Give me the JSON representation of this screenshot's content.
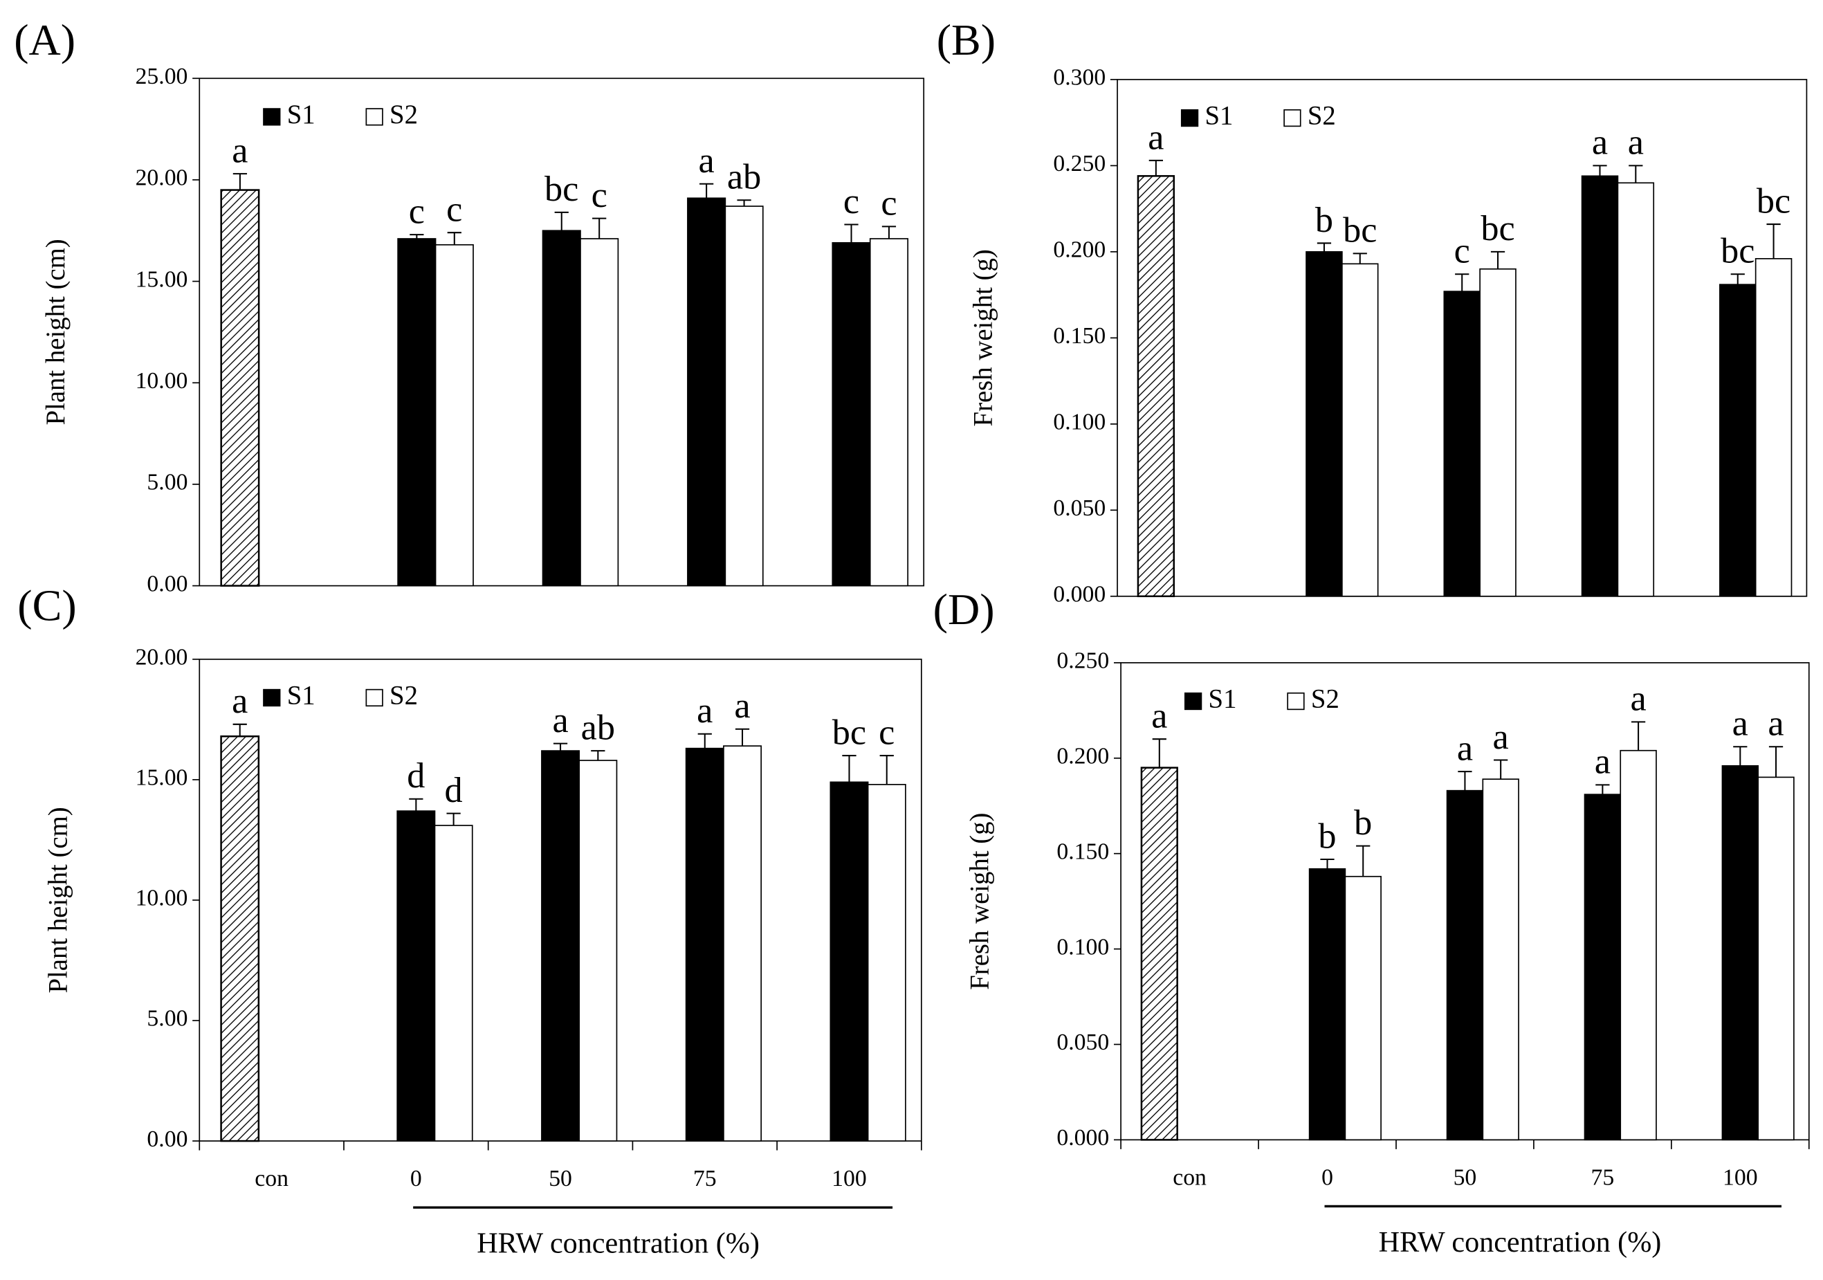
{
  "chart_data": [
    {
      "type": "bar",
      "panel": "(A)",
      "ylabel": "Plant height (cm)",
      "categories": [
        null,
        null,
        null,
        null,
        null
      ],
      "control": {
        "value": 19.5,
        "error": 0.8,
        "letter": "a"
      },
      "series": [
        {
          "name": "S1",
          "color": "#000000",
          "values": [
            null,
            17.1,
            17.5,
            19.1,
            16.9
          ],
          "errors": [
            null,
            0.2,
            0.9,
            0.7,
            0.9
          ],
          "letters": [
            null,
            "c",
            "bc",
            "a",
            "c"
          ]
        },
        {
          "name": "S2",
          "color": "#ffffff",
          "values": [
            null,
            16.8,
            17.1,
            18.7,
            17.1
          ],
          "errors": [
            null,
            0.6,
            1.0,
            0.3,
            0.6
          ],
          "letters": [
            null,
            "c",
            "c",
            "ab",
            "c"
          ]
        }
      ],
      "ylim": [
        0,
        25
      ],
      "yticks": [
        {
          "value": 0,
          "label": "0.00"
        },
        {
          "value": 5,
          "label": "5.00"
        },
        {
          "value": 10,
          "label": "10.00"
        },
        {
          "value": 15,
          "label": "15.00"
        },
        {
          "value": 20,
          "label": "20.00"
        },
        {
          "value": 25,
          "label": "25.00"
        }
      ]
    },
    {
      "type": "bar",
      "panel": "(B)",
      "ylabel": "Fresh weight (g)",
      "categories": [
        null,
        null,
        null,
        null,
        null
      ],
      "control": {
        "value": 0.244,
        "error": 0.009,
        "letter": "a"
      },
      "series": [
        {
          "name": "S1",
          "color": "#000000",
          "values": [
            null,
            0.2,
            0.177,
            0.244,
            0.181
          ],
          "errors": [
            null,
            0.005,
            0.01,
            0.006,
            0.006
          ],
          "letters": [
            null,
            "b",
            "c",
            "a",
            "bc"
          ]
        },
        {
          "name": "S2",
          "color": "#ffffff",
          "values": [
            null,
            0.193,
            0.19,
            0.24,
            0.196
          ],
          "errors": [
            null,
            0.006,
            0.01,
            0.01,
            0.02
          ],
          "letters": [
            null,
            "bc",
            "bc",
            "a",
            "bc"
          ]
        }
      ],
      "ylim": [
        0,
        0.3
      ],
      "yticks": [
        {
          "value": 0,
          "label": "0.000"
        },
        {
          "value": 0.05,
          "label": "0.050"
        },
        {
          "value": 0.1,
          "label": "0.100"
        },
        {
          "value": 0.15,
          "label": "0.150"
        },
        {
          "value": 0.2,
          "label": "0.200"
        },
        {
          "value": 0.25,
          "label": "0.250"
        },
        {
          "value": 0.3,
          "label": "0.300"
        }
      ]
    },
    {
      "type": "bar",
      "panel": "(C)",
      "ylabel": "Plant height (cm)",
      "xlabel": "HRW concentration (%)",
      "categories": [
        "con",
        "0",
        "50",
        "75",
        "100"
      ],
      "control": {
        "value": 16.8,
        "error": 0.5,
        "letter": "a"
      },
      "series": [
        {
          "name": "S1",
          "color": "#000000",
          "values": [
            null,
            13.7,
            16.2,
            16.3,
            14.9
          ],
          "errors": [
            null,
            0.5,
            0.3,
            0.6,
            1.1
          ],
          "letters": [
            null,
            "d",
            "a",
            "a",
            "bc"
          ]
        },
        {
          "name": "S2",
          "color": "#ffffff",
          "values": [
            null,
            13.1,
            15.8,
            16.4,
            14.8
          ],
          "errors": [
            null,
            0.5,
            0.4,
            0.7,
            1.2
          ],
          "letters": [
            null,
            "d",
            "ab",
            "a",
            "c"
          ]
        }
      ],
      "ylim": [
        0,
        20
      ],
      "yticks": [
        {
          "value": 0,
          "label": "0.00"
        },
        {
          "value": 5,
          "label": "5.00"
        },
        {
          "value": 10,
          "label": "10.00"
        },
        {
          "value": 15,
          "label": "15.00"
        },
        {
          "value": 20,
          "label": "20.00"
        }
      ]
    },
    {
      "type": "bar",
      "panel": "(D)",
      "ylabel": "Fresh weight (g)",
      "xlabel": "HRW concentration (%)",
      "categories": [
        "con",
        "0",
        "50",
        "75",
        "100"
      ],
      "control": {
        "value": 0.195,
        "error": 0.015,
        "letter": "a"
      },
      "series": [
        {
          "name": "S1",
          "color": "#000000",
          "values": [
            null,
            0.142,
            0.183,
            0.181,
            0.196
          ],
          "errors": [
            null,
            0.005,
            0.01,
            0.005,
            0.01
          ],
          "letters": [
            null,
            "b",
            "a",
            "a",
            "a"
          ]
        },
        {
          "name": "S2",
          "color": "#ffffff",
          "values": [
            null,
            0.138,
            0.189,
            0.204,
            0.19
          ],
          "errors": [
            null,
            0.016,
            0.01,
            0.015,
            0.016
          ],
          "letters": [
            null,
            "b",
            "a",
            "a",
            "a"
          ]
        }
      ],
      "ylim": [
        0,
        0.25
      ],
      "yticks": [
        {
          "value": 0,
          "label": "0.000"
        },
        {
          "value": 0.05,
          "label": "0.050"
        },
        {
          "value": 0.1,
          "label": "0.100"
        },
        {
          "value": 0.15,
          "label": "0.150"
        },
        {
          "value": 0.2,
          "label": "0.200"
        },
        {
          "value": 0.25,
          "label": "0.250"
        }
      ]
    }
  ]
}
